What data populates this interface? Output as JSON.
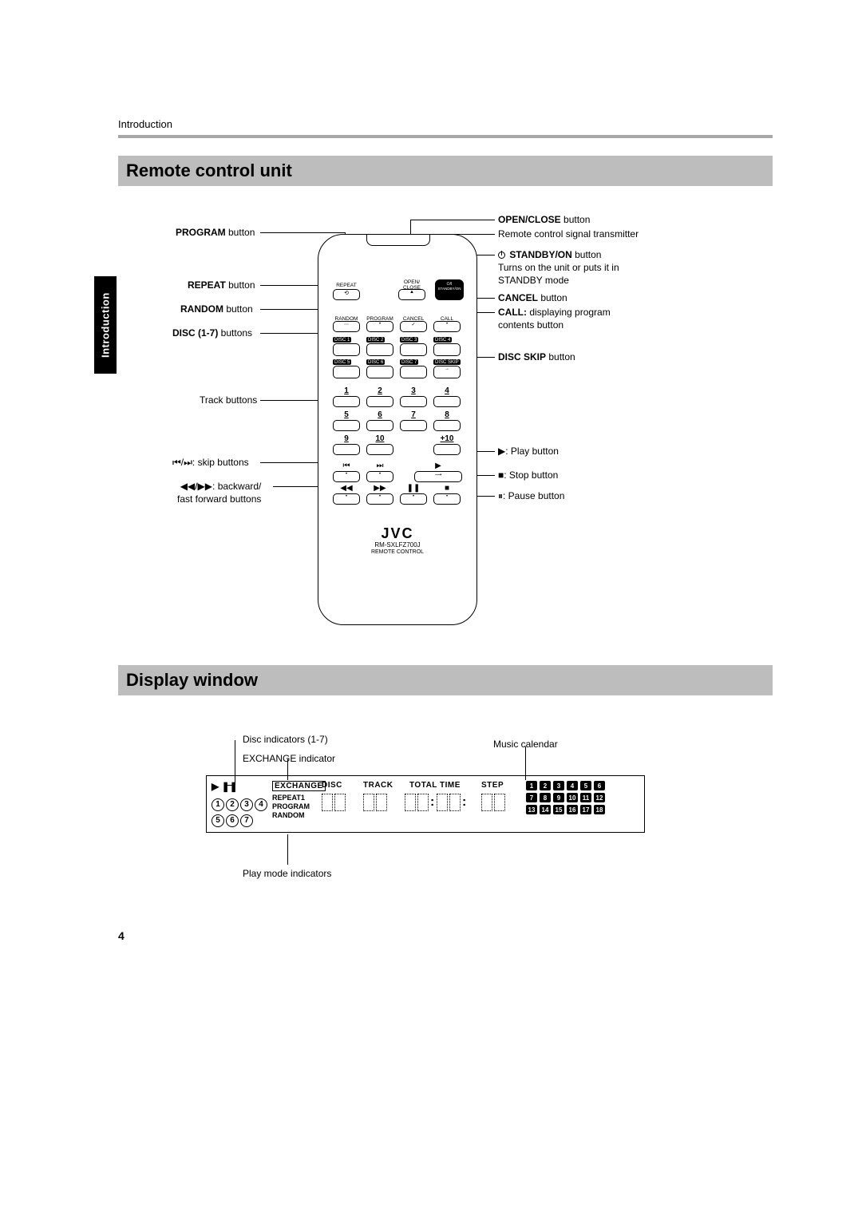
{
  "chapter": "Introduction",
  "side_tab": "Introduction",
  "page_number": "4",
  "section1_title": "Remote control unit",
  "section2_title": "Display window",
  "left_callouts": {
    "program": {
      "bold": "PROGRAM",
      "rest": " button"
    },
    "repeat": {
      "bold": "REPEAT",
      "rest": " button"
    },
    "random": {
      "bold": "RANDOM",
      "rest": " button"
    },
    "disc17": {
      "bold": "DISC (1-7)",
      "rest": " buttons"
    },
    "track": "Track buttons",
    "skip": {
      "pre": "⏮/⏭: ",
      "rest": "skip buttons"
    },
    "ff": {
      "pre": "◀◀/▶▶: ",
      "rest1": "backward/",
      "rest2": "fast forward buttons"
    }
  },
  "right_callouts": {
    "openclose": {
      "bold": "OPEN/CLOSE",
      "rest": " button"
    },
    "transmitter": "Remote control signal transmitter",
    "standby": {
      "bold": " STANDBY/ON",
      "rest": " button",
      "line2": "Turns on the unit or puts it in STANDBY mode"
    },
    "cancel": {
      "bold": "CANCEL",
      "rest": " button"
    },
    "call": {
      "bold": "CALL:",
      "rest": " displaying program contents button"
    },
    "discskip": {
      "bold": "DISC SKIP",
      "rest": " button"
    },
    "play": "▶: Play button",
    "stop": "■: Stop button",
    "pause": "⏸: Pause button"
  },
  "remote": {
    "row1_labels": [
      "REPEAT",
      "",
      "OPEN/\nCLOSE",
      "STANDBY/ON"
    ],
    "row2_labels": [
      "RANDOM",
      "PROGRAM",
      "CANCEL",
      "CALL"
    ],
    "disc_row1": [
      "DISC 1",
      "DISC 2",
      "DISC 3",
      "DISC 4"
    ],
    "disc_row2": [
      "DISC 5",
      "DISC 6",
      "DISC 7",
      "DISC SKIP"
    ],
    "numbers": [
      "1",
      "2",
      "3",
      "4",
      "5",
      "6",
      "7",
      "8",
      "9",
      "10",
      "",
      "+10"
    ],
    "brand": "JVC",
    "model": "RM-SXLFZ700J",
    "caption": "REMOTE CONTROL"
  },
  "display": {
    "top_labels": {
      "disc_ind": "Disc indicators (1-7)",
      "exchange": "EXCHANGE indicator",
      "music_cal": "Music calendar"
    },
    "bottom_label": "Play mode indicators",
    "headers": [
      "EXCHANGE",
      "DISC",
      "TRACK",
      "TOTAL TIME",
      "STEP"
    ],
    "modes": [
      "REPEAT1",
      "PROGRAM",
      "RANDOM"
    ],
    "disc_nums_row1": [
      "1",
      "2",
      "3",
      "4"
    ],
    "disc_nums_row2": [
      "5",
      "6",
      "7"
    ],
    "calendar": [
      "1",
      "2",
      "3",
      "4",
      "5",
      "6",
      "7",
      "8",
      "9",
      "10",
      "11",
      "12",
      "13",
      "14",
      "15",
      "16",
      "17",
      "18"
    ]
  }
}
